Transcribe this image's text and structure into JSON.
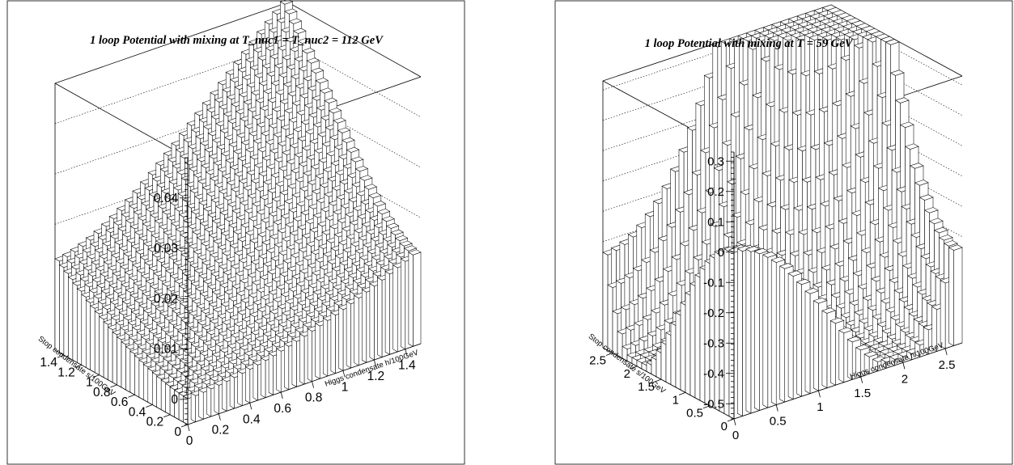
{
  "chart_data": [
    {
      "type": "lego3d",
      "title": "1 loop Potential with mixing at T_nuc1 = T_nuc2 = 112 GeV",
      "xlabel": "Higgs condensate h/100GeV",
      "ylabel": "Stop condensate s/100GeV",
      "zlabel": "",
      "x_range": [
        0,
        1.5
      ],
      "y_range": [
        0,
        1.5
      ],
      "z_range": [
        -0.005,
        0.048
      ],
      "x_ticks": [
        "0",
        "0.2",
        "0.4",
        "0.6",
        "0.8",
        "1",
        "1.2",
        "1.4"
      ],
      "y_ticks": [
        "0",
        "0.2",
        "0.4",
        "0.6",
        "0.8",
        "1",
        "1.2",
        "1.4"
      ],
      "z_ticks": [
        "0",
        "0.01",
        "0.02",
        "0.03",
        "0.04"
      ],
      "bins": 30,
      "grid": false,
      "surface": "V(h,s) rising from 0 at h=s=0 to ~0.046 at the far edge, minima of similar depth along both axes"
    },
    {
      "type": "lego3d",
      "title": "1 loop Potential with mixing at T = 59 GeV",
      "xlabel": "Higgs condensate h/100GeV",
      "ylabel": "Stop condensate s/100GeV",
      "zlabel": "",
      "x_range": [
        0,
        2.7
      ],
      "y_range": [
        0,
        2.7
      ],
      "z_range": [
        -0.55,
        0.33
      ],
      "x_ticks": [
        "0",
        "0.5",
        "1",
        "1.5",
        "2",
        "2.5"
      ],
      "y_ticks": [
        "0",
        "0.5",
        "1",
        "1.5",
        "2",
        "2.5"
      ],
      "z_ticks": [
        "-0.5",
        "-0.4",
        "-0.3",
        "-0.2",
        "-0.1",
        "0",
        "0.1",
        "0.2",
        "0.3"
      ],
      "bins": 27,
      "grid": false,
      "surface": "V(h,s) with a deep valley near |phi| ~ 2, rising to ~0.32 at the far edge"
    }
  ]
}
